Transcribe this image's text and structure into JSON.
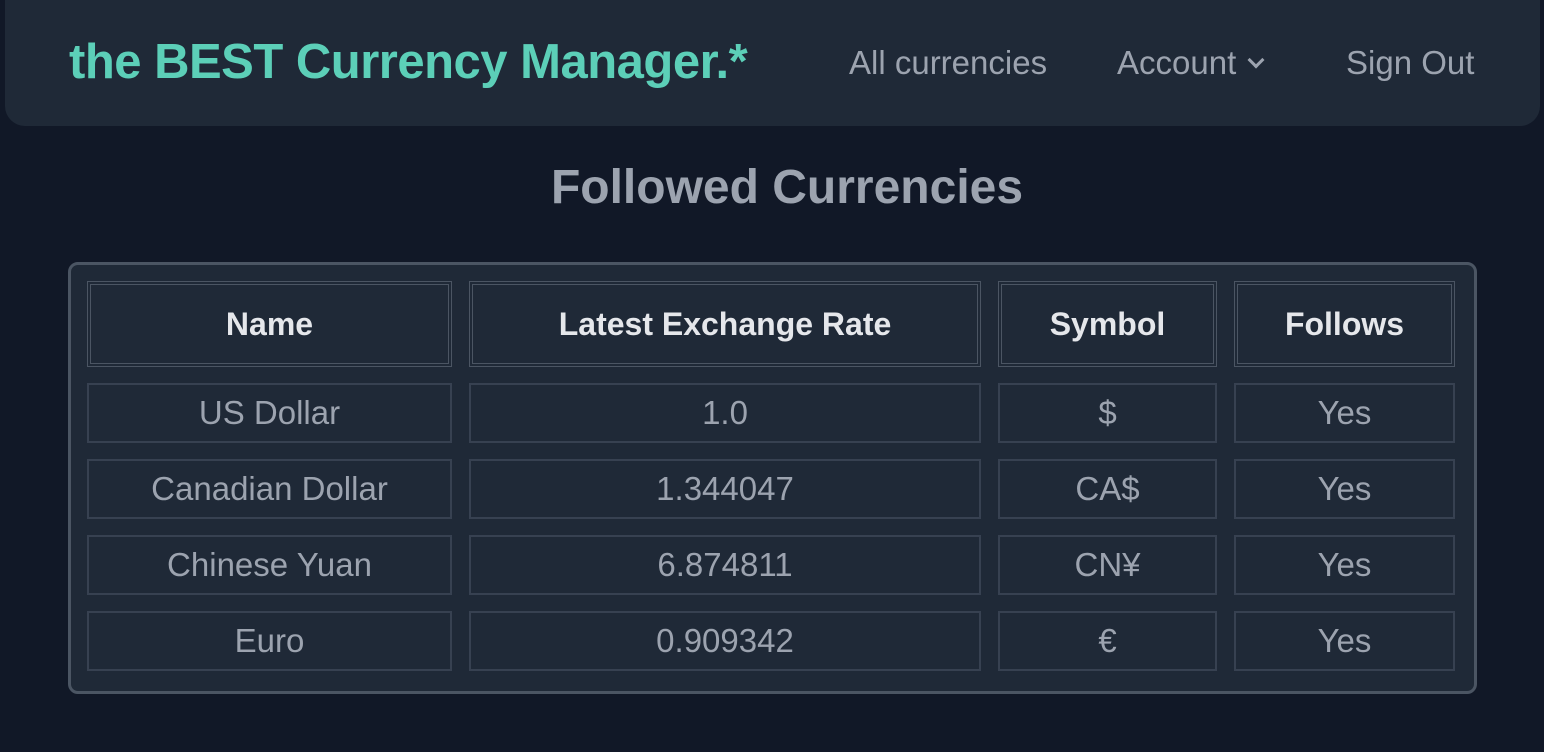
{
  "nav": {
    "brand": "the BEST Currency Manager.*",
    "links": {
      "all_currencies": "All currencies",
      "account": "Account",
      "sign_out": "Sign Out"
    }
  },
  "page": {
    "title": "Followed Currencies"
  },
  "table": {
    "headers": [
      "Name",
      "Latest Exchange Rate",
      "Symbol",
      "Follows"
    ],
    "rows": [
      [
        "US Dollar",
        "1.0",
        "$",
        "Yes"
      ],
      [
        "Canadian Dollar",
        "1.344047",
        "CA$",
        "Yes"
      ],
      [
        "Chinese Yuan",
        "6.874811",
        "CN¥",
        "Yes"
      ],
      [
        "Euro",
        "0.909342",
        "€",
        "Yes"
      ]
    ]
  },
  "colors": {
    "background": "#111827",
    "panel": "#1f2937",
    "brand": "#5ccfb8",
    "text_muted": "#9ca3af",
    "header_text": "#e5e7eb",
    "border": "#4b5563"
  }
}
